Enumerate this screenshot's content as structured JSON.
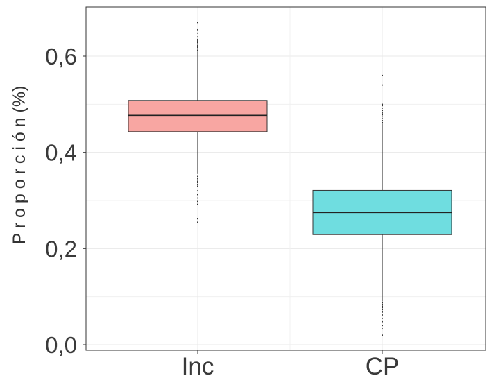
{
  "chart_data": {
    "type": "boxplot",
    "title": "",
    "xlabel": "",
    "ylabel": "P r o p o r c i ó n (%)",
    "ylim": [
      0,
      0.7
    ],
    "y_ticks": [
      {
        "value": 0.0,
        "label": "0,0"
      },
      {
        "value": 0.2,
        "label": "0,2"
      },
      {
        "value": 0.4,
        "label": "0,4"
      },
      {
        "value": 0.6,
        "label": "0,6"
      }
    ],
    "grid": true,
    "legend": "none",
    "categories": [
      "Inc",
      "CP"
    ],
    "boxes": [
      {
        "category": "Inc",
        "fill": "#f8a6a2",
        "whisker_low": 0.355,
        "q1": 0.443,
        "median": 0.477,
        "q3": 0.508,
        "whisker_high": 0.61,
        "outliers": [
          0.612,
          0.615,
          0.618,
          0.62,
          0.622,
          0.625,
          0.628,
          0.63,
          0.632,
          0.635,
          0.64,
          0.648,
          0.655,
          0.67,
          0.35,
          0.345,
          0.34,
          0.337,
          0.333,
          0.33,
          0.32,
          0.312,
          0.305,
          0.298,
          0.292,
          0.262,
          0.255
        ]
      },
      {
        "category": "CP",
        "fill": "#6fdde0",
        "whisker_low": 0.09,
        "q1": 0.229,
        "median": 0.275,
        "q3": 0.321,
        "whisker_high": 0.46,
        "outliers": [
          0.462,
          0.466,
          0.47,
          0.474,
          0.478,
          0.482,
          0.487,
          0.492,
          0.497,
          0.5,
          0.54,
          0.56,
          0.087,
          0.083,
          0.08,
          0.077,
          0.073,
          0.068,
          0.062,
          0.055,
          0.048,
          0.04,
          0.033,
          0.02
        ]
      }
    ],
    "colors": {
      "border": "#333333",
      "grid": "#e8e8e8",
      "whisker": "#1a1a1a"
    }
  }
}
